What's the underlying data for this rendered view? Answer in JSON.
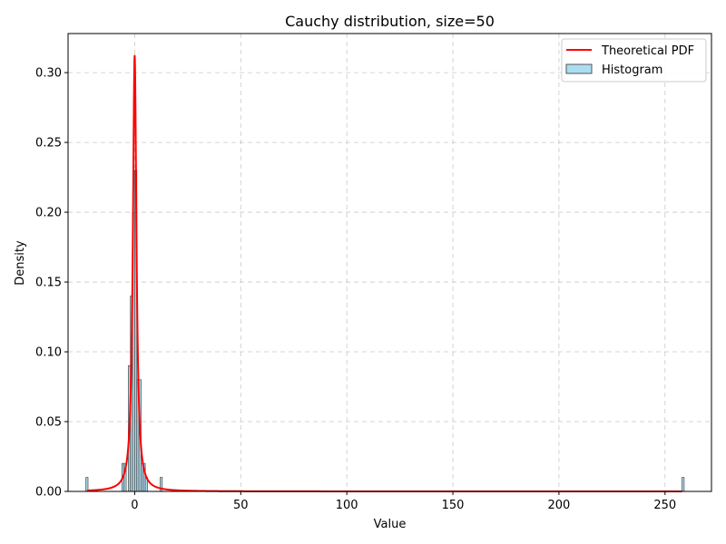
{
  "chart_data": {
    "type": "bar",
    "title": "Cauchy distribution, size=50",
    "xlabel": "Value",
    "ylabel": "Density",
    "xlim": [
      -31.4,
      271.9
    ],
    "ylim": [
      0,
      0.328
    ],
    "x_ticks": [
      0,
      50,
      100,
      150,
      200,
      250
    ],
    "y_ticks": [
      0.0,
      0.05,
      0.1,
      0.15,
      0.2,
      0.25,
      0.3
    ],
    "x_tick_labels": [
      "0",
      "50",
      "100",
      "150",
      "200",
      "250"
    ],
    "y_tick_labels": [
      "0.00",
      "0.05",
      "0.10",
      "0.15",
      "0.20",
      "0.25",
      "0.30"
    ],
    "grid": true,
    "legend_position": "top-right",
    "histogram": {
      "name": "Histogram",
      "color": "#87CEEB",
      "edge_color": "#555555",
      "bin_width": 1.0,
      "bins": [
        {
          "x": -22.5,
          "density": 0.01
        },
        {
          "x": -5.5,
          "density": 0.02
        },
        {
          "x": -4.5,
          "density": 0.02
        },
        {
          "x": -2.5,
          "density": 0.09
        },
        {
          "x": -1.5,
          "density": 0.14
        },
        {
          "x": -0.5,
          "density": 0.2
        },
        {
          "x": 0.5,
          "density": 0.23
        },
        {
          "x": 1.5,
          "density": 0.08
        },
        {
          "x": 2.5,
          "density": 0.08
        },
        {
          "x": 3.5,
          "density": 0.02
        },
        {
          "x": 4.5,
          "density": 0.02
        },
        {
          "x": 5.5,
          "density": 0.01
        },
        {
          "x": 12.5,
          "density": 0.01
        },
        {
          "x": 258.5,
          "density": 0.01
        }
      ]
    },
    "pdf": {
      "name": "Theoretical PDF",
      "color": "#ff0000",
      "distribution": "cauchy",
      "location": 0,
      "scale": 1.02,
      "x_range": [
        -22.5,
        258.5
      ]
    },
    "legend": [
      {
        "label": "Theoretical PDF",
        "kind": "line",
        "color": "#ff0000"
      },
      {
        "label": "Histogram",
        "kind": "patch",
        "color": "#87CEEB"
      }
    ]
  }
}
